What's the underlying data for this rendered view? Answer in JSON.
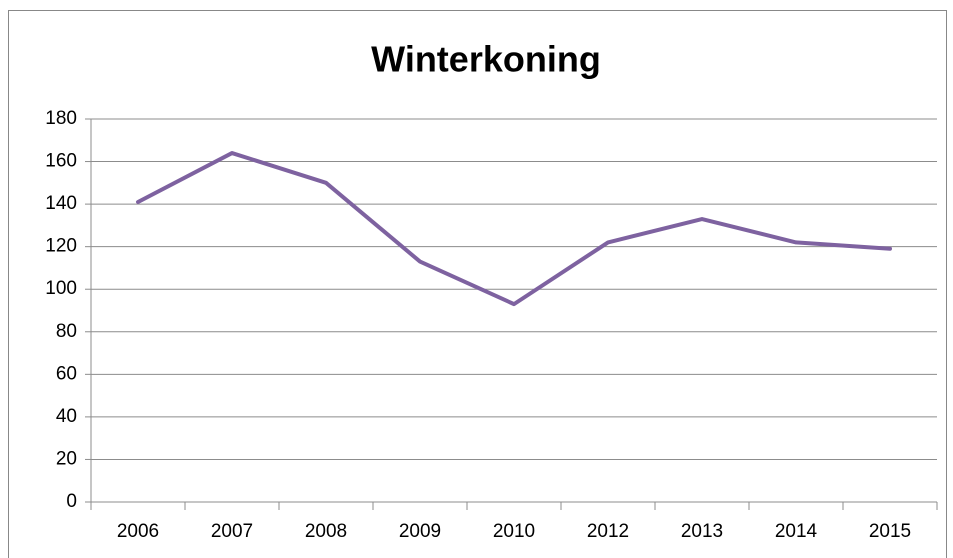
{
  "chart_data": {
    "type": "line",
    "title": "Winterkoning",
    "categories": [
      "2006",
      "2007",
      "2008",
      "2009",
      "2010",
      "2012",
      "2013",
      "2014",
      "2015"
    ],
    "series": [
      {
        "name": "Winterkoning",
        "color": "#7e62a0",
        "values": [
          141,
          164,
          150,
          113,
          93,
          122,
          133,
          122,
          119
        ]
      }
    ],
    "ylim": [
      0,
      180
    ],
    "yticks": [
      0,
      20,
      40,
      60,
      80,
      100,
      120,
      140,
      160,
      180
    ],
    "grid": true
  }
}
